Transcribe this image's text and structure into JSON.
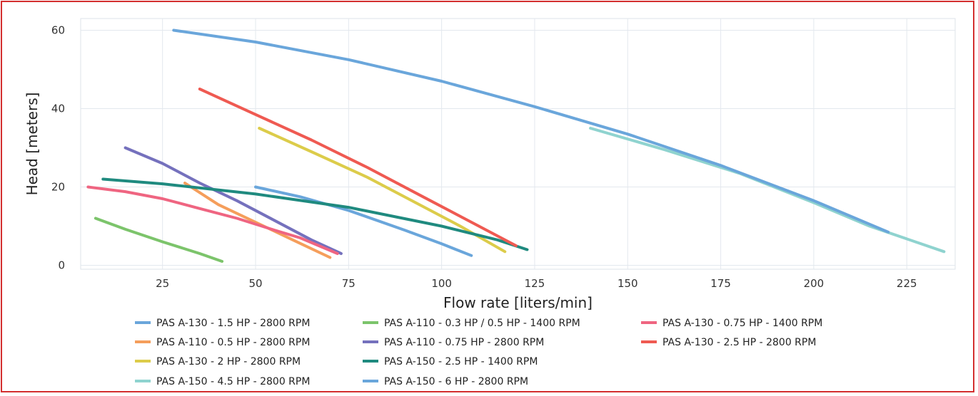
{
  "chart_data": {
    "type": "line",
    "title": "",
    "xlabel": "Flow rate [liters/min]",
    "ylabel": "Head [meters]",
    "xlim": [
      3,
      238
    ],
    "ylim": [
      -1,
      63
    ],
    "xticks": [
      25,
      50,
      75,
      100,
      125,
      150,
      175,
      200,
      225
    ],
    "yticks": [
      0,
      20,
      40,
      60
    ],
    "grid": true,
    "legend_position": "bottom",
    "series": [
      {
        "name": "PAS A-130 - 1.5 HP - 2800 RPM",
        "color": "#6aa6db",
        "x": [
          50,
          62,
          75,
          90,
          100,
          108
        ],
        "y": [
          20,
          17.5,
          14,
          9,
          5.5,
          2.5
        ]
      },
      {
        "name": "PAS A-110 - 0.5 HP - 2800 RPM",
        "color": "#f59e5b",
        "x": [
          31,
          40,
          50,
          60,
          70
        ],
        "y": [
          21,
          15.5,
          11,
          6.5,
          2
        ]
      },
      {
        "name": "PAS A-130 - 2 HP - 2800 RPM",
        "color": "#dccc4a",
        "x": [
          51,
          65,
          80,
          95,
          105,
          117
        ],
        "y": [
          35,
          29,
          22.5,
          15,
          10,
          3.5
        ]
      },
      {
        "name": "PAS A-150 - 4.5 HP - 2800 RPM",
        "color": "#8fd3cf",
        "x": [
          140,
          160,
          180,
          200,
          215,
          235
        ],
        "y": [
          35,
          29.5,
          23.5,
          16,
          10,
          3.5
        ]
      },
      {
        "name": "PAS A-110 - 0.3 HP / 0.5 HP - 1400 RPM",
        "color": "#7cc46b",
        "x": [
          7,
          15,
          25,
          35,
          41
        ],
        "y": [
          12,
          9.2,
          6,
          3,
          1
        ]
      },
      {
        "name": "PAS A-110 - 0.75 HP - 2800 RPM",
        "color": "#7571bd",
        "x": [
          15,
          25,
          35,
          45,
          55,
          65,
          73
        ],
        "y": [
          30,
          26,
          21,
          16.5,
          11.5,
          6.5,
          3
        ]
      },
      {
        "name": "PAS A-150 - 2.5 HP - 1400 RPM",
        "color": "#1f8a7f",
        "x": [
          9,
          25,
          50,
          75,
          100,
          115,
          123
        ],
        "y": [
          22,
          20.8,
          18.2,
          14.8,
          10,
          6.5,
          4
        ]
      },
      {
        "name": "PAS A-150 - 6 HP - 2800 RPM",
        "color": "#6aa6db",
        "x": [
          28,
          50,
          75,
          100,
          125,
          150,
          175,
          200,
          220
        ],
        "y": [
          60,
          57,
          52.5,
          47,
          40.5,
          33.5,
          25.5,
          16.5,
          8.5
        ]
      },
      {
        "name": "PAS A-130 - 0.75 HP - 1400 RPM",
        "color": "#ef6581",
        "x": [
          5,
          15,
          25,
          35,
          45,
          55,
          62,
          72
        ],
        "y": [
          20,
          18.8,
          17,
          14.5,
          12,
          9,
          7,
          3
        ]
      },
      {
        "name": "PAS A-130 - 2.5 HP - 2800 RPM",
        "color": "#ef5a52",
        "x": [
          35,
          50,
          65,
          80,
          95,
          110,
          120
        ],
        "y": [
          45,
          38.5,
          32,
          25,
          17.5,
          10,
          5
        ]
      }
    ]
  }
}
